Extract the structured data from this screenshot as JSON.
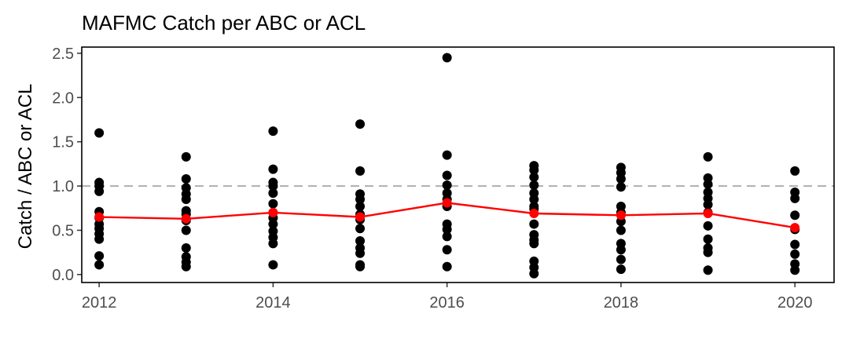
{
  "chart_data": {
    "type": "scatter",
    "title": "MAFMC Catch per ABC or ACL",
    "xlabel": "",
    "ylabel": "Catch / ABC or ACL",
    "xlim": [
      2011.8,
      2020.45
    ],
    "ylim": [
      -0.09,
      2.57
    ],
    "xticks": [
      2012,
      2014,
      2016,
      2018,
      2020
    ],
    "xtick_labels": [
      "2012",
      "2014",
      "2016",
      "2018",
      "2020"
    ],
    "yticks": [
      0.0,
      0.5,
      1.0,
      1.5,
      2.0,
      2.5
    ],
    "ytick_labels": [
      "0.0",
      "0.5",
      "1.0",
      "1.5",
      "2.0",
      "2.5"
    ],
    "reference_line": {
      "y": 1.0,
      "style": "dashed",
      "color": "#b3b3b3"
    },
    "grid": false,
    "series": [
      {
        "kind": "points",
        "color": "#000000",
        "points": [
          [
            2012,
            1.6
          ],
          [
            2012,
            1.04
          ],
          [
            2012,
            1.0
          ],
          [
            2012,
            0.94
          ],
          [
            2012,
            0.71
          ],
          [
            2012,
            0.64
          ],
          [
            2012,
            0.57
          ],
          [
            2012,
            0.52
          ],
          [
            2012,
            0.46
          ],
          [
            2012,
            0.4
          ],
          [
            2012,
            0.21
          ],
          [
            2012,
            0.11
          ],
          [
            2013,
            1.33
          ],
          [
            2013,
            1.08
          ],
          [
            2013,
            0.98
          ],
          [
            2013,
            0.91
          ],
          [
            2013,
            0.85
          ],
          [
            2013,
            0.72
          ],
          [
            2013,
            0.68
          ],
          [
            2013,
            0.61
          ],
          [
            2013,
            0.5
          ],
          [
            2013,
            0.3
          ],
          [
            2013,
            0.2
          ],
          [
            2013,
            0.14
          ],
          [
            2013,
            0.09
          ],
          [
            2014,
            1.62
          ],
          [
            2014,
            1.19
          ],
          [
            2014,
            1.04
          ],
          [
            2014,
            1.0
          ],
          [
            2014,
            0.92
          ],
          [
            2014,
            0.8
          ],
          [
            2014,
            0.7
          ],
          [
            2014,
            0.64
          ],
          [
            2014,
            0.57
          ],
          [
            2014,
            0.49
          ],
          [
            2014,
            0.42
          ],
          [
            2014,
            0.35
          ],
          [
            2014,
            0.11
          ],
          [
            2015,
            1.7
          ],
          [
            2015,
            1.17
          ],
          [
            2015,
            0.91
          ],
          [
            2015,
            0.85
          ],
          [
            2015,
            0.77
          ],
          [
            2015,
            0.68
          ],
          [
            2015,
            0.62
          ],
          [
            2015,
            0.52
          ],
          [
            2015,
            0.38
          ],
          [
            2015,
            0.3
          ],
          [
            2015,
            0.24
          ],
          [
            2015,
            0.11
          ],
          [
            2015,
            0.09
          ],
          [
            2016,
            2.45
          ],
          [
            2016,
            1.35
          ],
          [
            2016,
            1.12
          ],
          [
            2016,
            1.01
          ],
          [
            2016,
            0.92
          ],
          [
            2016,
            0.85
          ],
          [
            2016,
            0.77
          ],
          [
            2016,
            0.57
          ],
          [
            2016,
            0.51
          ],
          [
            2016,
            0.43
          ],
          [
            2016,
            0.28
          ],
          [
            2016,
            0.09
          ],
          [
            2017,
            1.23
          ],
          [
            2017,
            1.18
          ],
          [
            2017,
            1.1
          ],
          [
            2017,
            1.01
          ],
          [
            2017,
            0.92
          ],
          [
            2017,
            0.85
          ],
          [
            2017,
            0.77
          ],
          [
            2017,
            0.74
          ],
          [
            2017,
            0.57
          ],
          [
            2017,
            0.45
          ],
          [
            2017,
            0.39
          ],
          [
            2017,
            0.35
          ],
          [
            2017,
            0.15
          ],
          [
            2017,
            0.08
          ],
          [
            2017,
            0.01
          ],
          [
            2018,
            1.21
          ],
          [
            2018,
            1.15
          ],
          [
            2018,
            1.08
          ],
          [
            2018,
            0.99
          ],
          [
            2018,
            0.77
          ],
          [
            2018,
            0.7
          ],
          [
            2018,
            0.6
          ],
          [
            2018,
            0.5
          ],
          [
            2018,
            0.35
          ],
          [
            2018,
            0.28
          ],
          [
            2018,
            0.17
          ],
          [
            2018,
            0.06
          ],
          [
            2019,
            1.33
          ],
          [
            2019,
            1.09
          ],
          [
            2019,
            1.02
          ],
          [
            2019,
            0.93
          ],
          [
            2019,
            0.86
          ],
          [
            2019,
            0.79
          ],
          [
            2019,
            0.7
          ],
          [
            2019,
            0.55
          ],
          [
            2019,
            0.4
          ],
          [
            2019,
            0.3
          ],
          [
            2019,
            0.25
          ],
          [
            2019,
            0.05
          ],
          [
            2020,
            1.17
          ],
          [
            2020,
            0.93
          ],
          [
            2020,
            0.86
          ],
          [
            2020,
            0.67
          ],
          [
            2020,
            0.51
          ],
          [
            2020,
            0.34
          ],
          [
            2020,
            0.23
          ],
          [
            2020,
            0.12
          ],
          [
            2020,
            0.05
          ]
        ]
      },
      {
        "kind": "line",
        "color": "#ff0000",
        "x": [
          2012,
          2013,
          2014,
          2015,
          2016,
          2017,
          2018,
          2019,
          2020
        ],
        "values": [
          0.65,
          0.63,
          0.7,
          0.65,
          0.81,
          0.69,
          0.67,
          0.69,
          0.53
        ]
      }
    ]
  }
}
